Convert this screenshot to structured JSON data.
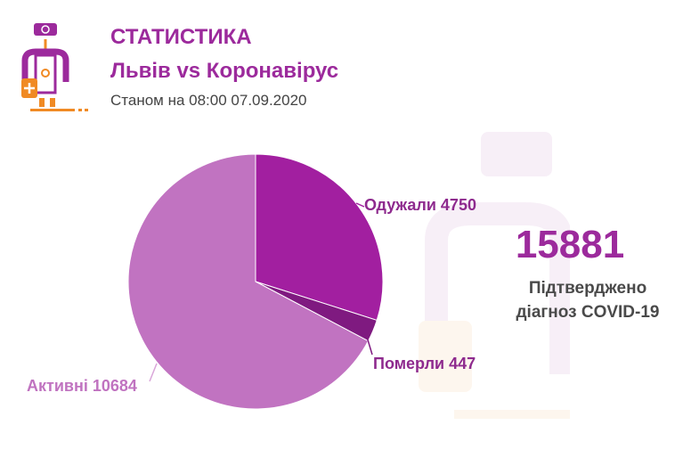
{
  "header": {
    "title": "СТАТИСТИКА",
    "subtitle": "Львів vs Коронавірус",
    "date": "Станом на 08:00 07.09.2020"
  },
  "summary": {
    "total": "15881",
    "caption_line1": "Підтверджено",
    "caption_line2": "діагноз COVID-19"
  },
  "chart_data": {
    "type": "pie",
    "title": "Львів vs Коронавірус",
    "start": "top",
    "direction": "clockwise",
    "slices": [
      {
        "label": "Одужали",
        "value": 4750,
        "text": "Одужали 4750",
        "color": "#a21fa0"
      },
      {
        "label": "Померли",
        "value": 447,
        "text": "Померли 447",
        "color": "#7f1a80"
      },
      {
        "label": "Активні",
        "value": 10684,
        "text": "Активні 10684",
        "color": "#c173c1"
      }
    ]
  }
}
